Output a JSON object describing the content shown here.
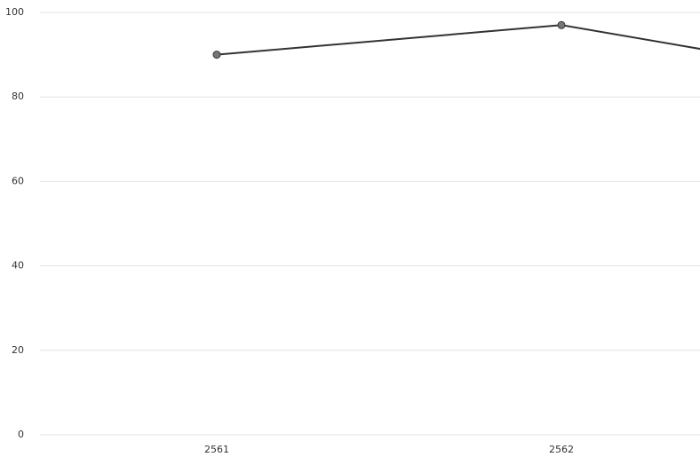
{
  "chart_data": {
    "type": "line",
    "categories": [
      "2561",
      "2562",
      null
    ],
    "series": [
      {
        "values": [
          90,
          97,
          83
        ],
        "color": "#333333"
      }
    ],
    "ylim": [
      0,
      100
    ],
    "yticks": [
      0,
      20,
      40,
      60,
      80,
      100
    ],
    "grid": true
  }
}
